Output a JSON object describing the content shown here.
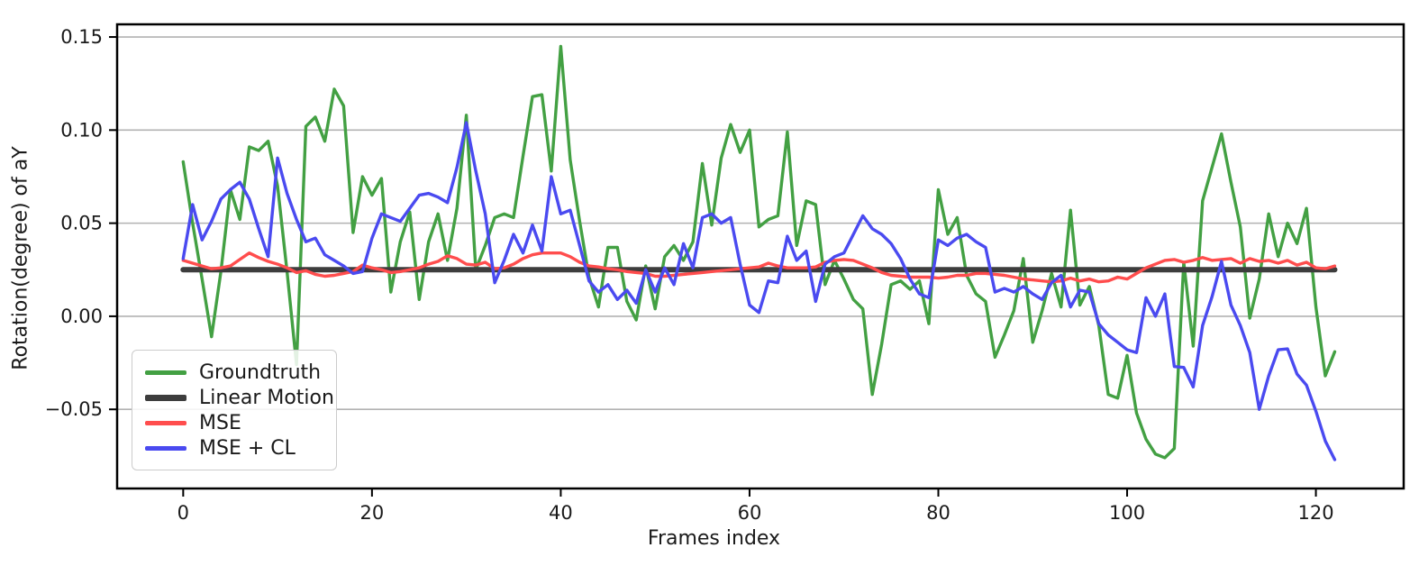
{
  "chart_data": {
    "type": "line",
    "title": "",
    "xlabel": "Frames index",
    "ylabel": "Rotation(degree) of aY",
    "xlim": [
      -7,
      129.3
    ],
    "ylim": [
      -0.0925,
      0.1568
    ],
    "xticks": [
      0,
      20,
      40,
      60,
      80,
      100,
      120
    ],
    "yticks": [
      -0.05,
      0.0,
      0.05,
      0.1,
      0.15
    ],
    "ytick_labels": [
      "−0.05",
      "0.00",
      "0.05",
      "0.10",
      "0.15"
    ],
    "grid": "horizontal",
    "grid_color": "#b2b2b2",
    "spine_color": "#000000",
    "legend_position": "lower-left",
    "x_start_frame": 0,
    "series": [
      {
        "name": "Groundtruth",
        "color": "#43a043",
        "width": 3.4,
        "values": [
          0.083,
          0.05,
          0.02,
          -0.011,
          0.024,
          0.068,
          0.052,
          0.091,
          0.089,
          0.094,
          0.07,
          0.024,
          -0.026,
          0.102,
          0.107,
          0.094,
          0.122,
          0.113,
          0.045,
          0.075,
          0.065,
          0.074,
          0.013,
          0.04,
          0.056,
          0.009,
          0.04,
          0.055,
          0.03,
          0.058,
          0.108,
          0.025,
          0.038,
          0.053,
          0.055,
          0.053,
          0.086,
          0.118,
          0.119,
          0.078,
          0.145,
          0.084,
          0.051,
          0.021,
          0.005,
          0.037,
          0.037,
          0.008,
          -0.002,
          0.027,
          0.004,
          0.032,
          0.038,
          0.03,
          0.04,
          0.082,
          0.049,
          0.085,
          0.103,
          0.088,
          0.1,
          0.048,
          0.052,
          0.054,
          0.099,
          0.038,
          0.062,
          0.06,
          0.017,
          0.03,
          0.02,
          0.009,
          0.004,
          -0.042,
          -0.015,
          0.017,
          0.019,
          0.0145,
          0.019,
          -0.004,
          0.068,
          0.044,
          0.053,
          0.022,
          0.012,
          0.008,
          -0.022,
          -0.01,
          0.003,
          0.031,
          -0.014,
          0.003,
          0.023,
          0.005,
          0.057,
          0.006,
          0.016,
          -0.005,
          -0.042,
          -0.044,
          -0.021,
          -0.052,
          -0.066,
          -0.074,
          -0.076,
          -0.071,
          0.029,
          -0.016,
          0.062,
          0.08,
          0.098,
          0.072,
          0.048,
          -0.001,
          0.02,
          0.055,
          0.032,
          0.05,
          0.039,
          0.058,
          0.005,
          -0.032,
          -0.019
        ]
      },
      {
        "name": "Linear Motion",
        "color": "#3d3d3d",
        "width": 6,
        "constant": 0.025,
        "num_points": 123
      },
      {
        "name": "MSE",
        "color": "#ff4d4d",
        "width": 3.4,
        "values": [
          0.03,
          0.0285,
          0.027,
          0.0255,
          0.026,
          0.027,
          0.0305,
          0.034,
          0.0315,
          0.0295,
          0.028,
          0.026,
          0.0235,
          0.0245,
          0.0225,
          0.0215,
          0.022,
          0.023,
          0.024,
          0.0275,
          0.026,
          0.025,
          0.0235,
          0.024,
          0.025,
          0.026,
          0.028,
          0.0295,
          0.0325,
          0.031,
          0.028,
          0.0275,
          0.029,
          0.0255,
          0.026,
          0.028,
          0.031,
          0.033,
          0.034,
          0.034,
          0.034,
          0.032,
          0.029,
          0.027,
          0.0265,
          0.0255,
          0.025,
          0.024,
          0.0235,
          0.023,
          0.0215,
          0.0215,
          0.022,
          0.0225,
          0.023,
          0.0235,
          0.024,
          0.0245,
          0.025,
          0.0255,
          0.026,
          0.0265,
          0.0285,
          0.027,
          0.026,
          0.026,
          0.026,
          0.0265,
          0.029,
          0.03,
          0.0305,
          0.03,
          0.028,
          0.026,
          0.0235,
          0.022,
          0.0215,
          0.021,
          0.021,
          0.021,
          0.0205,
          0.021,
          0.022,
          0.022,
          0.023,
          0.023,
          0.0225,
          0.022,
          0.021,
          0.02,
          0.0195,
          0.019,
          0.0185,
          0.019,
          0.0205,
          0.019,
          0.02,
          0.0185,
          0.019,
          0.021,
          0.02,
          0.023,
          0.026,
          0.028,
          0.03,
          0.0305,
          0.029,
          0.03,
          0.0315,
          0.03,
          0.0305,
          0.031,
          0.0285,
          0.031,
          0.0295,
          0.03,
          0.0285,
          0.03,
          0.0275,
          0.029,
          0.026,
          0.0255,
          0.027
        ]
      },
      {
        "name": "MSE + CL",
        "color": "#4a4af0",
        "width": 3.4,
        "values": [
          0.031,
          0.06,
          0.041,
          0.051,
          0.063,
          0.068,
          0.072,
          0.063,
          0.047,
          0.032,
          0.085,
          0.066,
          0.052,
          0.04,
          0.042,
          0.033,
          0.03,
          0.027,
          0.023,
          0.024,
          0.042,
          0.055,
          0.053,
          0.051,
          0.058,
          0.065,
          0.066,
          0.064,
          0.061,
          0.08,
          0.104,
          0.078,
          0.055,
          0.018,
          0.03,
          0.044,
          0.034,
          0.049,
          0.035,
          0.075,
          0.055,
          0.057,
          0.038,
          0.019,
          0.013,
          0.017,
          0.009,
          0.014,
          0.007,
          0.025,
          0.013,
          0.026,
          0.017,
          0.039,
          0.026,
          0.053,
          0.055,
          0.05,
          0.053,
          0.028,
          0.006,
          0.002,
          0.019,
          0.018,
          0.043,
          0.03,
          0.035,
          0.008,
          0.028,
          0.032,
          0.034,
          0.044,
          0.054,
          0.047,
          0.044,
          0.039,
          0.031,
          0.02,
          0.012,
          0.01,
          0.041,
          0.038,
          0.042,
          0.044,
          0.04,
          0.037,
          0.013,
          0.015,
          0.013,
          0.016,
          0.012,
          0.009,
          0.018,
          0.022,
          0.005,
          0.014,
          0.013,
          -0.004,
          -0.01,
          -0.014,
          -0.018,
          -0.0195,
          0.01,
          0.0,
          0.012,
          -0.027,
          -0.0275,
          -0.038,
          -0.005,
          0.0105,
          0.0295,
          0.006,
          -0.005,
          -0.0195,
          -0.05,
          -0.032,
          -0.018,
          -0.0175,
          -0.031,
          -0.037,
          -0.051,
          -0.067,
          -0.077
        ]
      }
    ]
  }
}
